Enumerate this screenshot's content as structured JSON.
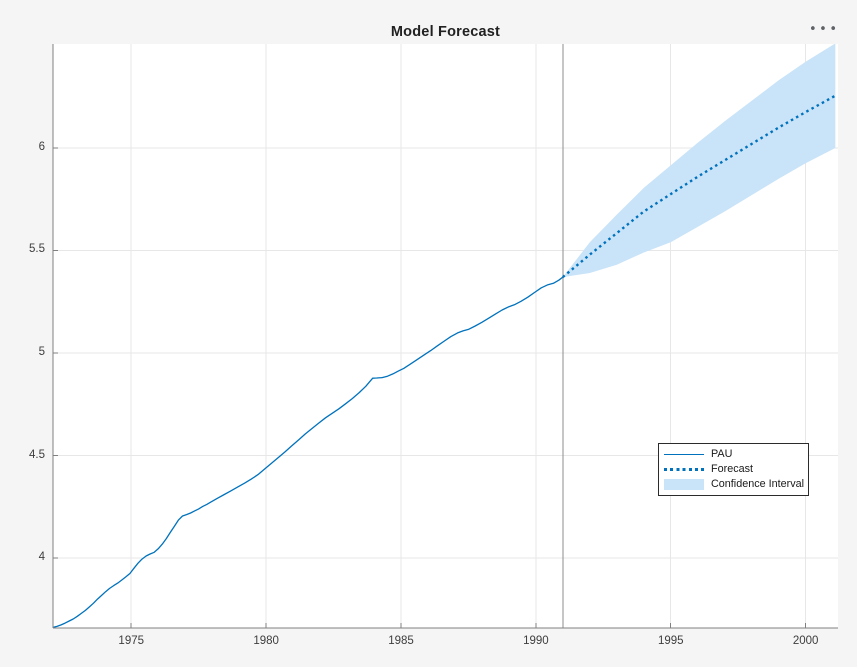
{
  "figure": {
    "title": "Model Forecast",
    "icons": {
      "more_options": "•••"
    }
  },
  "legend": {
    "items": [
      {
        "label": "PAU",
        "swatch": "line"
      },
      {
        "label": "Forecast",
        "swatch": "dotted"
      },
      {
        "label": "Confidence Interval",
        "swatch": "patch"
      }
    ]
  },
  "colors": {
    "accent": "#0072BD",
    "band": "#C9E3F8",
    "grid": "#E7E7E7",
    "axis": "#808080",
    "vline": "#8C8C8C",
    "text": "#3D3D3D",
    "title": "#212121",
    "figure_bg": "#F5F5F5",
    "plot_bg": "#FFFFFF",
    "legend_border": "#2B2B2B"
  },
  "chart_data": {
    "type": "line",
    "title": "Model Forecast",
    "xlabel": "",
    "ylabel": "",
    "xlim": [
      1972.1,
      2001.2
    ],
    "ylim": [
      3.659,
      6.507
    ],
    "x_ticks": [
      1975,
      1980,
      1985,
      1990,
      1995,
      2000
    ],
    "y_ticks": [
      4,
      4.5,
      5,
      5.5,
      6
    ],
    "grid": true,
    "legend_position": "right-middle",
    "forecast_origin_x": 1991,
    "series": [
      {
        "name": "PAU",
        "style": "solid",
        "points": [
          [
            1972.1,
            3.662
          ],
          [
            1972.25,
            3.667
          ],
          [
            1972.4,
            3.674
          ],
          [
            1972.55,
            3.683
          ],
          [
            1972.7,
            3.693
          ],
          [
            1972.85,
            3.703
          ],
          [
            1973.0,
            3.716
          ],
          [
            1973.15,
            3.73
          ],
          [
            1973.3,
            3.745
          ],
          [
            1973.45,
            3.762
          ],
          [
            1973.6,
            3.78
          ],
          [
            1973.75,
            3.8
          ],
          [
            1973.9,
            3.818
          ],
          [
            1974.05,
            3.836
          ],
          [
            1974.2,
            3.852
          ],
          [
            1974.35,
            3.866
          ],
          [
            1974.5,
            3.878
          ],
          [
            1974.65,
            3.893
          ],
          [
            1974.8,
            3.908
          ],
          [
            1974.95,
            3.925
          ],
          [
            1975.1,
            3.95
          ],
          [
            1975.25,
            3.975
          ],
          [
            1975.4,
            3.995
          ],
          [
            1975.55,
            4.01
          ],
          [
            1975.7,
            4.02
          ],
          [
            1975.85,
            4.028
          ],
          [
            1976.0,
            4.045
          ],
          [
            1976.15,
            4.068
          ],
          [
            1976.3,
            4.095
          ],
          [
            1976.45,
            4.125
          ],
          [
            1976.6,
            4.155
          ],
          [
            1976.75,
            4.185
          ],
          [
            1976.9,
            4.205
          ],
          [
            1977.05,
            4.212
          ],
          [
            1977.2,
            4.22
          ],
          [
            1977.35,
            4.23
          ],
          [
            1977.5,
            4.24
          ],
          [
            1977.65,
            4.252
          ],
          [
            1977.8,
            4.262
          ],
          [
            1977.95,
            4.273
          ],
          [
            1978.2,
            4.292
          ],
          [
            1978.45,
            4.31
          ],
          [
            1978.7,
            4.328
          ],
          [
            1978.95,
            4.347
          ],
          [
            1979.2,
            4.365
          ],
          [
            1979.45,
            4.385
          ],
          [
            1979.7,
            4.407
          ],
          [
            1979.95,
            4.435
          ],
          [
            1980.2,
            4.462
          ],
          [
            1980.45,
            4.49
          ],
          [
            1980.7,
            4.518
          ],
          [
            1980.95,
            4.547
          ],
          [
            1981.2,
            4.576
          ],
          [
            1981.45,
            4.605
          ],
          [
            1981.7,
            4.632
          ],
          [
            1981.95,
            4.658
          ],
          [
            1982.2,
            4.684
          ],
          [
            1982.45,
            4.706
          ],
          [
            1982.7,
            4.728
          ],
          [
            1982.95,
            4.753
          ],
          [
            1983.2,
            4.778
          ],
          [
            1983.45,
            4.807
          ],
          [
            1983.7,
            4.838
          ],
          [
            1983.85,
            4.862
          ],
          [
            1983.95,
            4.877
          ],
          [
            1984.1,
            4.878
          ],
          [
            1984.3,
            4.88
          ],
          [
            1984.5,
            4.887
          ],
          [
            1984.7,
            4.898
          ],
          [
            1984.9,
            4.912
          ],
          [
            1985.1,
            4.925
          ],
          [
            1985.35,
            4.946
          ],
          [
            1985.6,
            4.968
          ],
          [
            1985.85,
            4.99
          ],
          [
            1986.1,
            5.012
          ],
          [
            1986.35,
            5.035
          ],
          [
            1986.6,
            5.058
          ],
          [
            1986.85,
            5.08
          ],
          [
            1987.1,
            5.098
          ],
          [
            1987.3,
            5.108
          ],
          [
            1987.5,
            5.115
          ],
          [
            1987.75,
            5.132
          ],
          [
            1988.0,
            5.15
          ],
          [
            1988.25,
            5.17
          ],
          [
            1988.5,
            5.19
          ],
          [
            1988.75,
            5.21
          ],
          [
            1989.0,
            5.226
          ],
          [
            1989.2,
            5.235
          ],
          [
            1989.45,
            5.252
          ],
          [
            1989.7,
            5.272
          ],
          [
            1989.95,
            5.295
          ],
          [
            1990.2,
            5.318
          ],
          [
            1990.45,
            5.333
          ],
          [
            1990.65,
            5.34
          ],
          [
            1990.85,
            5.355
          ],
          [
            1991.0,
            5.37
          ]
        ]
      },
      {
        "name": "Forecast",
        "style": "dotted",
        "points": [
          [
            1991,
            5.37
          ],
          [
            1992,
            5.48
          ],
          [
            1993,
            5.585
          ],
          [
            1994,
            5.69
          ],
          [
            1995,
            5.775
          ],
          [
            1996,
            5.86
          ],
          [
            1997,
            5.94
          ],
          [
            1998,
            6.02
          ],
          [
            1999,
            6.1
          ],
          [
            2000,
            6.175
          ],
          [
            2001.1,
            6.255
          ]
        ]
      },
      {
        "name": "Confidence Interval",
        "style": "band",
        "x": [
          1991,
          1992,
          1993,
          1994,
          1995,
          1996,
          1997,
          1998,
          1999,
          2000,
          2001.1
        ],
        "upper": [
          5.37,
          5.54,
          5.675,
          5.805,
          5.915,
          6.025,
          6.13,
          6.23,
          6.33,
          6.42,
          6.51
        ],
        "lower": [
          5.37,
          5.39,
          5.43,
          5.49,
          5.54,
          5.615,
          5.69,
          5.77,
          5.85,
          5.925,
          6.0
        ]
      }
    ]
  }
}
